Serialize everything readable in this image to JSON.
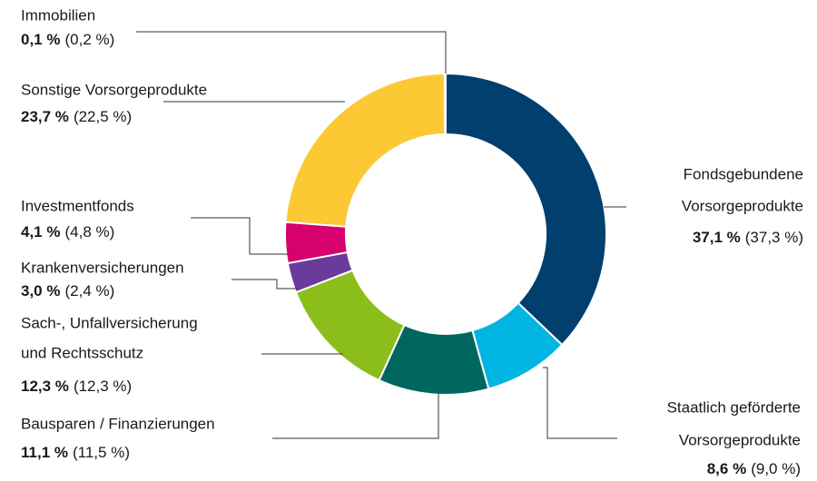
{
  "chart_data": {
    "type": "donut",
    "categories": [
      [
        "Fondsgebundene",
        "Vorsorgeprodukte"
      ],
      [
        "Staatlich geförderte",
        "Vorsorgeprodukte"
      ],
      [
        "Bausparen / Finanzierungen"
      ],
      [
        "Sach-, Unfallversicherung",
        "und Rechtsschutz"
      ],
      [
        "Krankenversicherungen"
      ],
      [
        "Investmentfonds"
      ],
      [
        "Sonstige Vorsorgeprodukte"
      ],
      [
        "Immobilien"
      ]
    ],
    "values": [
      37.1,
      8.6,
      11.1,
      12.3,
      3.0,
      4.1,
      23.7,
      0.1
    ],
    "value_labels": [
      "37,1 %",
      "8,6 %",
      "11,1 %",
      "12,3 %",
      "3,0 %",
      "4,1 %",
      "23,7 %",
      "0,1 %"
    ],
    "previous_values": [
      37.3,
      9.0,
      11.5,
      12.3,
      2.4,
      4.8,
      22.5,
      0.2
    ],
    "previous_value_labels": [
      "(37,3 %)",
      "(9,0 %)",
      "(11,5 %)",
      "(12,3 %)",
      "(2,4 %)",
      "(4,8 %)",
      "(22,5 %)",
      "(0,2 %)"
    ],
    "colors": [
      "#003f6e",
      "#00b5e2",
      "#00675f",
      "#8cbe1b",
      "#6a3b9c",
      "#d6006e",
      "#fcc934",
      "#8a8a8a"
    ]
  }
}
